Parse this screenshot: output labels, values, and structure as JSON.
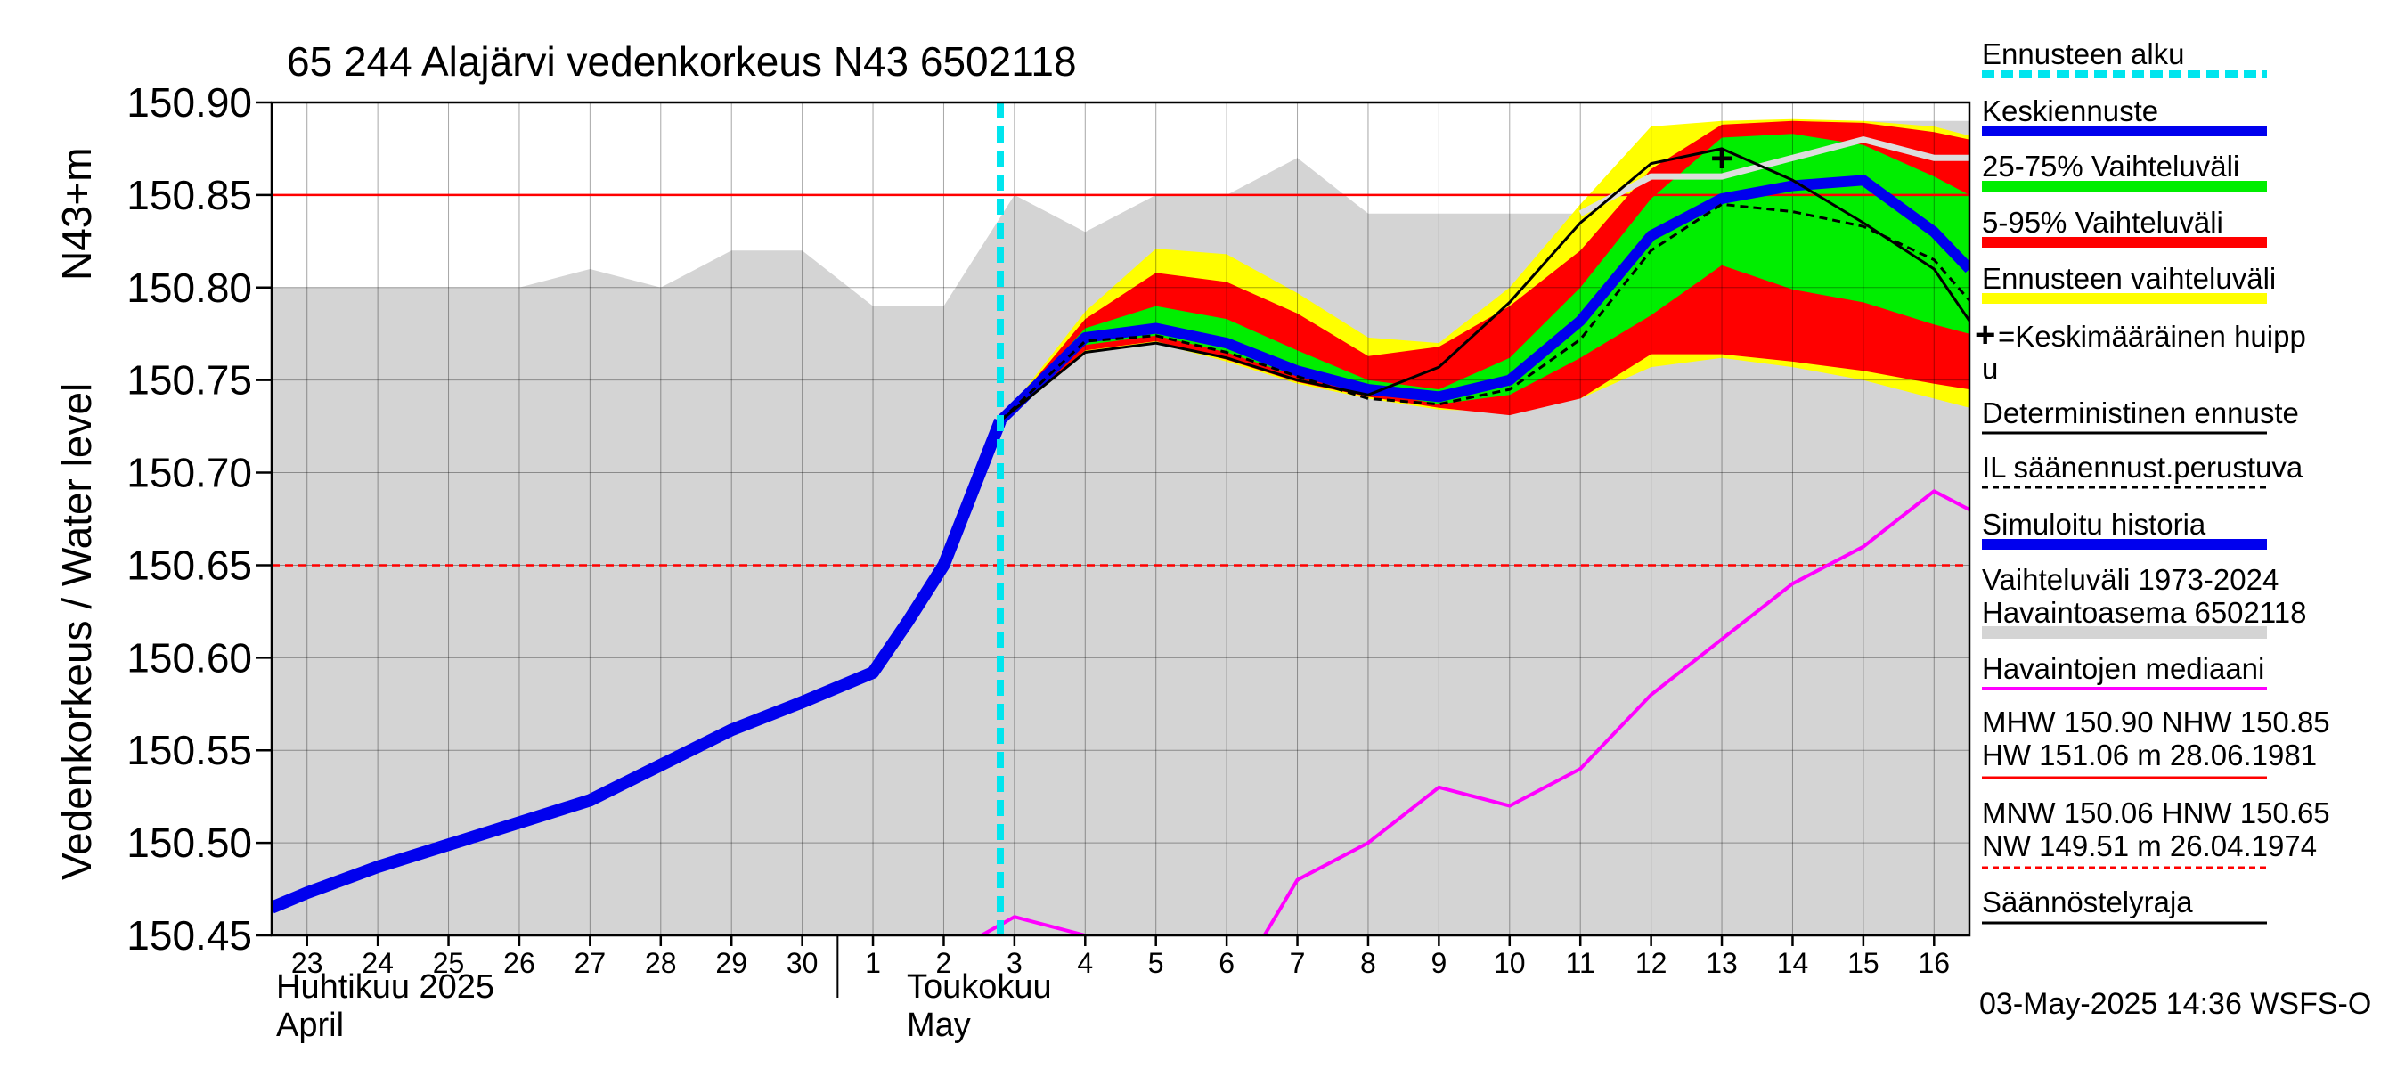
{
  "chart_data": {
    "type": "line",
    "title": "65 244 Alajärvi vedenkorkeus N43 6502118",
    "ylabel": "Vedenkorkeus / Water level",
    "ylabel_unit": "N43+m",
    "ylim": [
      150.45,
      150.9
    ],
    "yticks": [
      "150.90",
      "150.85",
      "150.80",
      "150.75",
      "150.70",
      "150.65",
      "150.60",
      "150.55",
      "150.50",
      "150.45"
    ],
    "x_day_range": [
      22.5,
      46.5
    ],
    "xticks": [
      {
        "x": 23,
        "label": "23"
      },
      {
        "x": 24,
        "label": "24"
      },
      {
        "x": 25,
        "label": "25"
      },
      {
        "x": 26,
        "label": "26"
      },
      {
        "x": 27,
        "label": "27"
      },
      {
        "x": 28,
        "label": "28"
      },
      {
        "x": 29,
        "label": "29"
      },
      {
        "x": 30,
        "label": "30"
      },
      {
        "x": 31,
        "label": "1"
      },
      {
        "x": 32,
        "label": "2"
      },
      {
        "x": 33,
        "label": "3"
      },
      {
        "x": 34,
        "label": "4"
      },
      {
        "x": 35,
        "label": "5"
      },
      {
        "x": 36,
        "label": "6"
      },
      {
        "x": 37,
        "label": "7"
      },
      {
        "x": 38,
        "label": "8"
      },
      {
        "x": 39,
        "label": "9"
      },
      {
        "x": 40,
        "label": "10"
      },
      {
        "x": 41,
        "label": "11"
      },
      {
        "x": 42,
        "label": "12"
      },
      {
        "x": 43,
        "label": "13"
      },
      {
        "x": 44,
        "label": "14"
      },
      {
        "x": 45,
        "label": "15"
      },
      {
        "x": 46,
        "label": "16"
      }
    ],
    "month_labels": {
      "april_fi": "Huhtikuu  2025",
      "april_en": "April",
      "may_fi": "Toukokuu",
      "may_en": "May"
    },
    "forecast_start_x": 32.8,
    "hw_line": 150.85,
    "hnw_line": 150.65,
    "series": [
      {
        "name": "Vaihteluväli 1973-2024",
        "kind": "band",
        "color": "#d4d4d4",
        "x": [
          22.5,
          23,
          24,
          25,
          26,
          27,
          28,
          29,
          30,
          31,
          32,
          33,
          34,
          35,
          36,
          37,
          38,
          39,
          40,
          41,
          42,
          43,
          44,
          45,
          46,
          46.5
        ],
        "low": [
          150.45,
          150.45,
          150.45,
          150.45,
          150.45,
          150.45,
          150.45,
          150.45,
          150.45,
          150.45,
          150.45,
          150.45,
          150.45,
          150.45,
          150.45,
          150.45,
          150.45,
          150.45,
          150.45,
          150.45,
          150.45,
          150.45,
          150.45,
          150.45,
          150.45,
          150.45
        ],
        "high": [
          150.8,
          150.8,
          150.8,
          150.8,
          150.8,
          150.81,
          150.8,
          150.82,
          150.82,
          150.79,
          150.79,
          150.85,
          150.83,
          150.85,
          150.85,
          150.87,
          150.84,
          150.84,
          150.84,
          150.84,
          150.87,
          150.87,
          150.88,
          150.89,
          150.89,
          150.89
        ]
      },
      {
        "name": "Ennusteen vaihteluväli",
        "kind": "band",
        "color": "#ffff00",
        "x": [
          32.8,
          34,
          35,
          36,
          37,
          38,
          39,
          40,
          41,
          42,
          43,
          44,
          45,
          46,
          46.5
        ],
        "low": [
          150.728,
          150.765,
          150.77,
          150.76,
          150.748,
          150.74,
          150.734,
          150.733,
          150.74,
          150.757,
          150.762,
          150.757,
          150.75,
          150.74,
          150.735
        ],
        "high": [
          150.728,
          150.787,
          150.821,
          150.818,
          150.797,
          150.773,
          150.77,
          150.8,
          150.845,
          150.887,
          150.89,
          150.891,
          150.89,
          150.887,
          150.882
        ]
      },
      {
        "name": "5-95% Vaihteluväli",
        "kind": "band",
        "color": "#ff0000",
        "x": [
          32.8,
          34,
          35,
          36,
          37,
          38,
          39,
          40,
          41,
          42,
          43,
          44,
          45,
          46,
          46.5
        ],
        "low": [
          150.728,
          150.766,
          150.771,
          150.761,
          150.749,
          150.741,
          150.735,
          150.731,
          150.74,
          150.764,
          150.764,
          150.76,
          150.755,
          150.748,
          150.745
        ],
        "high": [
          150.728,
          150.783,
          150.808,
          150.803,
          150.786,
          150.763,
          150.768,
          150.79,
          150.82,
          150.864,
          150.888,
          150.89,
          150.889,
          150.884,
          150.88
        ]
      },
      {
        "name": "25-75% Vaihteluväli",
        "kind": "band",
        "color": "#00ee00",
        "x": [
          32.8,
          34,
          35,
          36,
          37,
          38,
          39,
          40,
          41,
          42,
          43,
          44,
          45,
          46,
          46.5
        ],
        "low": [
          150.728,
          150.769,
          150.774,
          150.765,
          150.752,
          150.744,
          150.737,
          150.742,
          150.762,
          150.785,
          150.812,
          150.799,
          150.792,
          150.78,
          150.775
        ],
        "high": [
          150.728,
          150.778,
          150.79,
          150.783,
          150.766,
          150.75,
          150.745,
          150.762,
          150.8,
          150.848,
          150.881,
          150.883,
          150.877,
          150.86,
          150.85
        ]
      },
      {
        "name": "Havaintoasema 6502118",
        "kind": "line",
        "color": "#dddddd",
        "x": [
          41,
          42,
          43,
          44,
          45,
          46,
          46.5
        ],
        "y": [
          150.84,
          150.86,
          150.86,
          150.87,
          150.88,
          150.87,
          150.87
        ]
      },
      {
        "name": "Simuloitu historia",
        "kind": "line",
        "color": "#0000ee",
        "x": [
          22.5,
          23,
          24,
          25,
          26,
          27,
          28,
          29,
          30,
          31,
          31.5,
          32,
          32.8
        ],
        "y": [
          150.465,
          150.473,
          150.487,
          150.499,
          150.511,
          150.523,
          150.542,
          150.561,
          150.576,
          150.592,
          150.62,
          150.65,
          150.728
        ]
      },
      {
        "name": "Keskiennuste",
        "kind": "line",
        "color": "#0000ee",
        "x": [
          32.8,
          34,
          35,
          36,
          37,
          38,
          39,
          40,
          41,
          42,
          43,
          44,
          45,
          46,
          46.5
        ],
        "y": [
          150.728,
          150.773,
          150.778,
          150.77,
          150.755,
          150.745,
          150.741,
          150.75,
          150.782,
          150.828,
          150.848,
          150.855,
          150.858,
          150.83,
          150.81
        ]
      },
      {
        "name": "IL sääennust.perustuva",
        "kind": "line",
        "color": "#000000",
        "x": [
          32.8,
          34,
          35,
          36,
          37,
          38,
          39,
          40,
          41,
          42,
          43,
          44,
          45,
          46,
          46.5
        ],
        "y": [
          150.728,
          150.771,
          150.774,
          150.765,
          150.752,
          150.74,
          150.737,
          150.745,
          150.772,
          150.82,
          150.845,
          150.841,
          150.833,
          150.815,
          150.793
        ]
      },
      {
        "name": "Deterministinen ennuste",
        "kind": "line",
        "color": "#000000",
        "x": [
          32.8,
          34,
          35,
          36,
          37,
          38,
          39,
          40,
          41,
          42,
          43,
          44,
          45,
          46,
          46.5
        ],
        "y": [
          150.728,
          150.765,
          150.77,
          150.762,
          150.75,
          150.742,
          150.757,
          150.792,
          150.835,
          150.867,
          150.875,
          150.858,
          150.835,
          150.81,
          150.782
        ]
      },
      {
        "name": "Havaintojen mediaani",
        "kind": "line",
        "color": "#ff00ff",
        "x": [
          32.3,
          33,
          34,
          36.3,
          37,
          38,
          39,
          40,
          41,
          42,
          43,
          44,
          45,
          46,
          46.5
        ],
        "y": [
          150.445,
          150.46,
          150.45,
          150.435,
          150.48,
          150.5,
          150.53,
          150.52,
          150.54,
          150.58,
          150.61,
          150.64,
          150.66,
          150.69,
          150.68
        ]
      }
    ],
    "peak_marker": {
      "x": 43,
      "y": 150.87,
      "label": "+"
    }
  },
  "legend": {
    "items": [
      {
        "label": "Ennusteen alku",
        "swatch": "dashed-cyan"
      },
      {
        "label": "Keskiennuste",
        "swatch": "thick-blue"
      },
      {
        "label": "25-75% Vaihteluväli",
        "swatch": "thick-green"
      },
      {
        "label": "5-95% Vaihteluväli",
        "swatch": "thick-red"
      },
      {
        "label": "Ennusteen vaihteluväli",
        "swatch": "thick-yellow"
      },
      {
        "label": "=Keskimääräinen huipp",
        "label2": "u",
        "swatch": "none"
      },
      {
        "label": "Deterministinen ennuste",
        "swatch": "thin-black"
      },
      {
        "label": "IL säänennust.perustuva",
        "swatch": "dashed-black"
      },
      {
        "label": "Simuloitu historia",
        "swatch": "thick-blue"
      },
      {
        "label": "Vaihteluväli 1973-2024",
        "label2": " Havaintoasema 6502118",
        "swatch": "thick-gray"
      },
      {
        "label": "Havaintojen mediaani",
        "swatch": "thin-magenta"
      },
      {
        "label": "MHW 150.90 NHW 150.85",
        "label2": "HW 151.06 m 28.06.1981",
        "swatch": "thin-red"
      },
      {
        "label": "MNW 150.06 HNW 150.65",
        "label2": "NW 149.51 m 26.04.1974",
        "swatch": "dashed-red"
      },
      {
        "label": "Säännöstelyraja",
        "swatch": "thin-black"
      }
    ]
  },
  "footer": {
    "timestamp": "03-May-2025 14:36 WSFS-O"
  },
  "colors": {
    "cyan": "#00e5ee",
    "blue": "#0000ee",
    "green": "#00ee00",
    "red": "#ff0000",
    "yellow": "#ffff00",
    "gray": "#d4d4d4",
    "magenta": "#ff00ff"
  }
}
